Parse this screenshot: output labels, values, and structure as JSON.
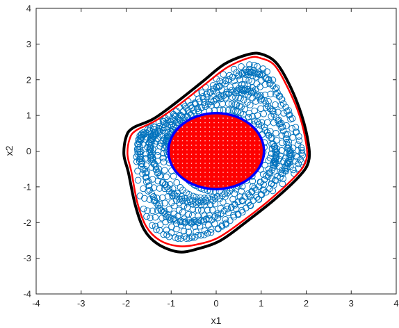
{
  "chart_data": {
    "type": "scatter",
    "title": "",
    "xlabel": "x1",
    "ylabel": "x2",
    "xlim": [
      -4,
      4
    ],
    "ylim": [
      -4,
      4
    ],
    "xticks": [
      "-4",
      "-3",
      "-2",
      "-1",
      "0",
      "1",
      "2",
      "3",
      "4"
    ],
    "yticks": [
      "-4",
      "-3",
      "-2",
      "-1",
      "0",
      "1",
      "2",
      "3",
      "4"
    ],
    "grid": false,
    "legend": "none",
    "colors": {
      "outer_boundary": "#000000",
      "inner_boundary": "#ff0000",
      "trajectory_markers": "#0072bd",
      "initial_set_fill": "#ff0000",
      "initial_set_edge": "#0000ff"
    },
    "series": [
      {
        "kind": "outer-invariant-boundary",
        "style": "thick black closed curve",
        "points": [
          [
            0.75,
            2.72
          ],
          [
            1.05,
            2.7
          ],
          [
            1.35,
            2.45
          ],
          [
            1.65,
            1.8
          ],
          [
            1.9,
            1.0
          ],
          [
            2.05,
            0.2
          ],
          [
            2.05,
            -0.3
          ],
          [
            1.85,
            -0.7
          ],
          [
            1.3,
            -1.35
          ],
          [
            0.7,
            -1.95
          ],
          [
            0.1,
            -2.5
          ],
          [
            -0.45,
            -2.75
          ],
          [
            -0.85,
            -2.82
          ],
          [
            -1.3,
            -2.6
          ],
          [
            -1.6,
            -2.2
          ],
          [
            -1.8,
            -1.5
          ],
          [
            -1.95,
            -0.6
          ],
          [
            -2.05,
            -0.1
          ],
          [
            -2.0,
            0.4
          ],
          [
            -1.85,
            0.65
          ],
          [
            -1.4,
            0.9
          ],
          [
            -0.9,
            1.35
          ],
          [
            -0.3,
            1.95
          ],
          [
            0.2,
            2.45
          ]
        ]
      },
      {
        "kind": "inner-invariant-boundary",
        "style": "red closed curve",
        "points": [
          [
            0.75,
            2.62
          ],
          [
            1.0,
            2.6
          ],
          [
            1.3,
            2.4
          ],
          [
            1.6,
            1.75
          ],
          [
            1.85,
            1.0
          ],
          [
            2.0,
            0.2
          ],
          [
            2.0,
            -0.25
          ],
          [
            1.8,
            -0.65
          ],
          [
            1.25,
            -1.3
          ],
          [
            0.65,
            -1.9
          ],
          [
            0.05,
            -2.42
          ],
          [
            -0.45,
            -2.62
          ],
          [
            -0.85,
            -2.66
          ],
          [
            -1.25,
            -2.5
          ],
          [
            -1.55,
            -2.12
          ],
          [
            -1.75,
            -1.45
          ],
          [
            -1.88,
            -0.6
          ],
          [
            -1.97,
            -0.1
          ],
          [
            -1.92,
            0.35
          ],
          [
            -1.78,
            0.58
          ],
          [
            -1.35,
            0.85
          ],
          [
            -0.85,
            1.28
          ],
          [
            -0.25,
            1.87
          ],
          [
            0.25,
            2.35
          ]
        ]
      },
      {
        "kind": "trajectory-markers",
        "marker": "open-circle",
        "inner_start_radius": 1.05,
        "outer_limit_scale": 0.92,
        "count": 900
      },
      {
        "kind": "initial-set",
        "shape": "ellipse",
        "center": [
          0.0,
          0.0
        ],
        "radii": [
          1.05,
          1.05
        ]
      }
    ]
  }
}
